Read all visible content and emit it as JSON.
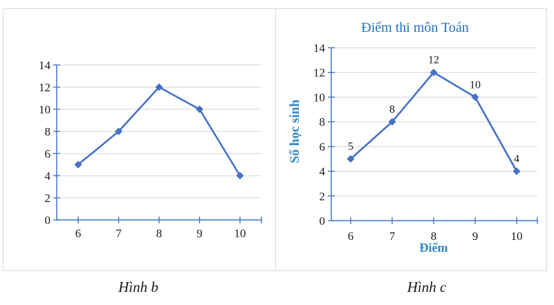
{
  "figure": {
    "caption_b": "Hình b",
    "caption_c": "Hình c"
  },
  "colors": {
    "line": "#4472C4",
    "marker": "#4472C4",
    "axis": "#3E74C7",
    "gridline": "#D6D6D6",
    "panel_border": "#D9D9D9",
    "title": "#1F72C1",
    "axis_label": "#2E86C9",
    "tick_label": "#1a1a1a",
    "data_label": "#1a1a1a"
  },
  "chart_data": [
    {
      "type": "line",
      "id": "hinh-b",
      "caption": "Hình b",
      "title": "",
      "xlabel": "",
      "ylabel": "",
      "x": [
        6,
        7,
        8,
        9,
        10
      ],
      "values": [
        5,
        8,
        12,
        10,
        4
      ],
      "xticks": [
        "6",
        "7",
        "8",
        "9",
        "10"
      ],
      "yticks": [
        0,
        2,
        4,
        6,
        8,
        10,
        12,
        14
      ],
      "ylim": [
        0,
        14
      ],
      "grid": true,
      "legend": "none",
      "data_labels": false,
      "marker": "diamond"
    },
    {
      "type": "line",
      "id": "hinh-c",
      "caption": "Hình c",
      "title": "Điểm thi môn Toán",
      "xlabel": "Điểm",
      "ylabel": "Số học sinh",
      "x": [
        6,
        7,
        8,
        9,
        10
      ],
      "values": [
        5,
        8,
        12,
        10,
        4
      ],
      "xticks": [
        "6",
        "7",
        "8",
        "9",
        "10"
      ],
      "yticks": [
        0,
        2,
        4,
        6,
        8,
        10,
        12,
        14
      ],
      "ylim": [
        0,
        14
      ],
      "grid": true,
      "legend": "none",
      "data_labels": true,
      "data_label_values": [
        "5",
        "8",
        "12",
        "10",
        "4"
      ],
      "marker": "diamond"
    }
  ]
}
